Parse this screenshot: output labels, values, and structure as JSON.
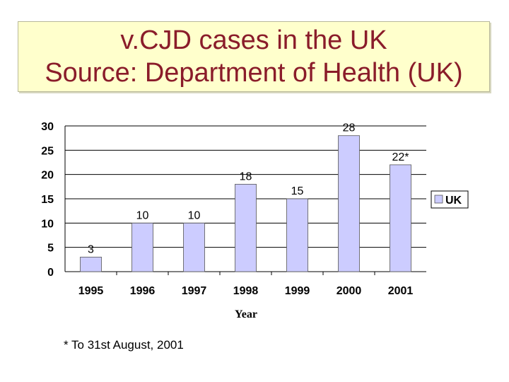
{
  "slide": {
    "title_line1": "v.CJD cases in the UK",
    "title_line2": "Source: Department of Health (UK)",
    "footnote": "* To 31st August, 2001"
  },
  "chart_data": {
    "type": "bar",
    "categories": [
      "1995",
      "1996",
      "1997",
      "1998",
      "1999",
      "2000",
      "2001"
    ],
    "series": [
      {
        "name": "UK",
        "values": [
          3,
          10,
          10,
          18,
          15,
          28,
          22
        ],
        "color": "#ccccff"
      }
    ],
    "data_labels": [
      "3",
      "10",
      "10",
      "18",
      "15",
      "28",
      "22*"
    ],
    "xlabel": "Year",
    "ylabel": "",
    "ylim": [
      0,
      30
    ],
    "yticks": [
      "0",
      "5",
      "10",
      "15",
      "20",
      "25",
      "30"
    ],
    "grid": true,
    "legend": "right"
  }
}
